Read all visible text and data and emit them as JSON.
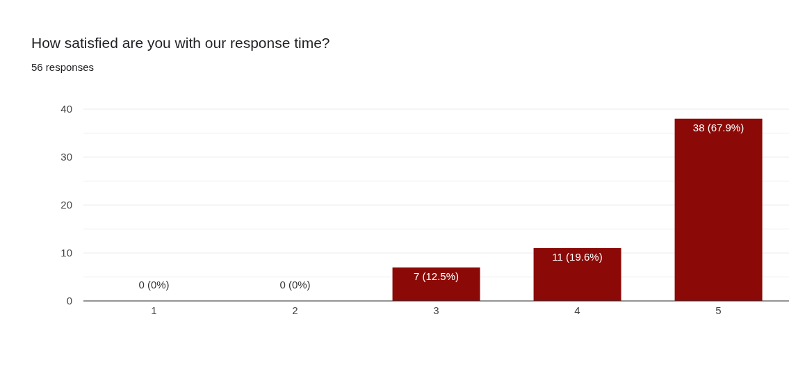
{
  "chart_data": {
    "type": "bar",
    "title": "How satisfied are you with our response time?",
    "subtitle": "56 responses",
    "categories": [
      "1",
      "2",
      "3",
      "4",
      "5"
    ],
    "values": [
      0,
      0,
      7,
      11,
      38
    ],
    "color": "#8b0a07",
    "value_labels": [
      "0 (0%)",
      "0 (0%)",
      "7 (12.5%)",
      "11 (19.6%)",
      "38 (67.9%)"
    ],
    "ylim": [
      0,
      40
    ],
    "yticks": [
      0,
      {
        "value": 5,
        "label": null
      },
      10,
      {
        "value": 15,
        "label": null
      },
      20,
      {
        "value": 25,
        "label": null
      },
      30,
      {
        "value": 35,
        "label": null
      },
      40
    ],
    "grid": "y"
  }
}
